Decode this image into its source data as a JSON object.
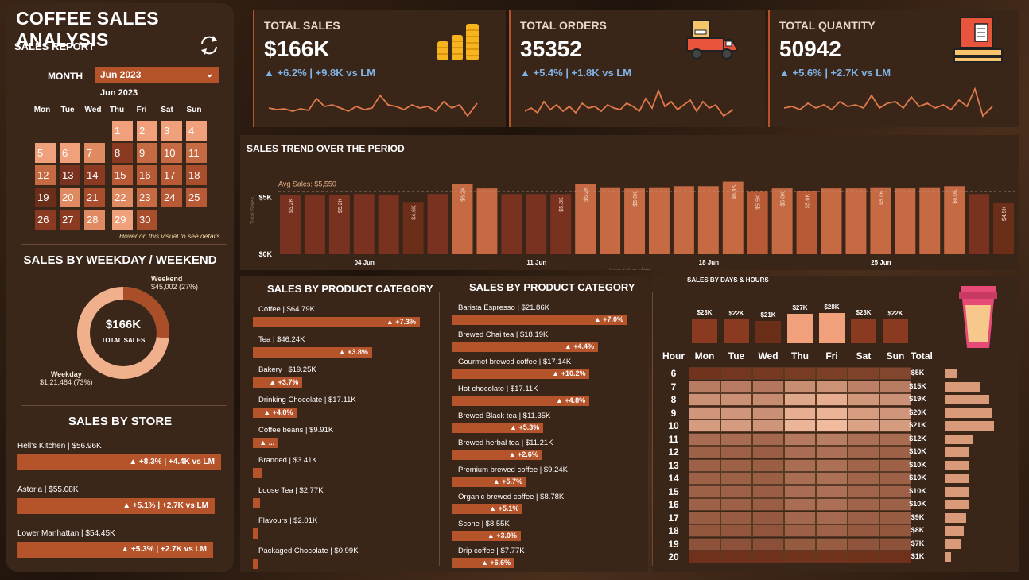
{
  "title": "COFFEE SALES ANALYSIS",
  "sales_report": {
    "label": "SALES REPORT",
    "month_label": "MONTH",
    "month_value": "Jun 2023",
    "calendar_title": "Jun 2023",
    "weekdays": [
      "Mon",
      "Tue",
      "Wed",
      "Thu",
      "Fri",
      "Sat",
      "Sun"
    ],
    "days": [
      "1",
      "2",
      "3",
      "4",
      "5",
      "6",
      "7",
      "8",
      "9",
      "10",
      "11",
      "12",
      "13",
      "14",
      "15",
      "16",
      "17",
      "18",
      "19",
      "20",
      "21",
      "22",
      "23",
      "24",
      "25",
      "26",
      "27",
      "28",
      "29",
      "30"
    ],
    "hint": "Hover on this visual to see details"
  },
  "weekday_weekend": {
    "title": "SALES BY WEEKDAY / WEEKEND",
    "center_value": "$166K",
    "center_label": "TOTAL SALES",
    "weekend_label": "Weekend",
    "weekend_value": "$45,002 (27%)",
    "weekday_label": "Weekday",
    "weekday_value": "$1,21,484 (73%)",
    "weekend_fraction": 0.27
  },
  "stores": {
    "title": "SALES BY STORE",
    "items": [
      {
        "label": "Hell's Kitchen | $56.96K",
        "delta": "▲ +8.3% | +4.4K vs LM"
      },
      {
        "label": "Astoria | $55.08K",
        "delta": "▲ +5.1% | +2.7K vs LM"
      },
      {
        "label": "Lower Manhattan | $54.45K",
        "delta": "▲ +5.3% | +2.7K vs LM"
      }
    ]
  },
  "kpis": [
    {
      "label": "TOTAL SALES",
      "value": "$166K",
      "delta": "▲ +6.2% | +9.8K vs LM",
      "icon": "coins-icon"
    },
    {
      "label": "TOTAL ORDERS",
      "value": "35352",
      "delta": "▲ +5.4% | +1.8K vs LM",
      "icon": "delivery-truck-icon"
    },
    {
      "label": "TOTAL QUANTITY",
      "value": "50942",
      "delta": "▲ +5.6% | +2.7K vs LM",
      "icon": "package-pallet-icon"
    }
  ],
  "trend": {
    "title": "SALES TREND OVER THE PERIOD",
    "avg_label": "Avg Sales: $5,550",
    "y_ticks": [
      "$5K",
      "$0K"
    ],
    "x_ticks": [
      "04 Jun",
      "11 Jun",
      "18 Jun",
      "25 Jun"
    ],
    "y_axis_label": "Total Sales",
    "x_axis_label": "transaction_date"
  },
  "chart_data": [
    {
      "type": "bar",
      "title": "SALES TREND OVER THE PERIOD",
      "xlabel": "transaction_date",
      "ylabel": "Total Sales",
      "x": [
        "1 Jun",
        "2 Jun",
        "3 Jun",
        "4 Jun",
        "5 Jun",
        "6 Jun",
        "7 Jun",
        "8 Jun",
        "9 Jun",
        "10 Jun",
        "11 Jun",
        "12 Jun",
        "13 Jun",
        "14 Jun",
        "15 Jun",
        "16 Jun",
        "17 Jun",
        "18 Jun",
        "19 Jun",
        "20 Jun",
        "21 Jun",
        "22 Jun",
        "23 Jun",
        "24 Jun",
        "25 Jun",
        "26 Jun",
        "27 Jun",
        "28 Jun",
        "29 Jun",
        "30 Jun"
      ],
      "values": [
        5200,
        5250,
        5200,
        5300,
        5250,
        4600,
        5300,
        6200,
        5800,
        5300,
        5300,
        5300,
        6200,
        5900,
        5800,
        5900,
        6000,
        6000,
        6400,
        5500,
        5800,
        5600,
        5800,
        5800,
        5900,
        5800,
        5900,
        6000,
        5300,
        4500
      ],
      "data_labels": [
        "$5.2K",
        "",
        "$5.2K",
        "",
        "",
        "$4.6K",
        "",
        "$6.2K",
        "",
        "",
        "",
        "$5.3K",
        "$6.2K",
        "",
        "$5.8K",
        "",
        "",
        "",
        "$6.4K",
        "$5.5K",
        "$5.8K",
        "$5.6K",
        "",
        "",
        "$5.9K",
        "",
        "",
        "$6.0K",
        "",
        "$4.5K"
      ],
      "average": 5550,
      "ylim": [
        0,
        7000
      ]
    },
    {
      "type": "bar",
      "title": "SALES BY PRODUCT CATEGORY",
      "categories": [
        "Coffee",
        "Tea",
        "Bakery",
        "Drinking Chocolate",
        "Coffee beans",
        "Branded",
        "Loose Tea",
        "Flavours",
        "Packaged Chocolate"
      ],
      "values": [
        64.79,
        46.24,
        19.25,
        17.11,
        9.91,
        3.41,
        2.77,
        2.01,
        0.99
      ]
    },
    {
      "type": "bar",
      "title": "SALES BY PRODUCT CATEGORY",
      "categories": [
        "Barista Espresso",
        "Brewed Chai tea",
        "Gourmet brewed coffee",
        "Hot chocolate",
        "Brewed Black tea",
        "Brewed herbal tea",
        "Premium brewed coffee",
        "Organic brewed coffee",
        "Scone",
        "Drip coffee"
      ],
      "values": [
        21.86,
        18.19,
        17.14,
        17.11,
        11.35,
        11.21,
        9.24,
        8.78,
        8.55,
        7.77
      ]
    },
    {
      "type": "heatmap",
      "title": "SALES BY DAYS & HOURS",
      "x": [
        "Mon",
        "Tue",
        "Wed",
        "Thu",
        "Fri",
        "Sat",
        "Sun"
      ],
      "y": [
        6,
        7,
        8,
        9,
        10,
        11,
        12,
        13,
        14,
        15,
        16,
        17,
        18,
        19,
        20
      ],
      "day_totals": [
        23,
        22,
        21,
        27,
        28,
        23,
        22
      ],
      "hour_totals": [
        5,
        15,
        19,
        20,
        21,
        12,
        10,
        10,
        10,
        10,
        10,
        9,
        8,
        7,
        1
      ]
    }
  ],
  "categories": {
    "title": "SALES BY PRODUCT CATEGORY",
    "items": [
      {
        "label": "Coffee | $64.79K",
        "delta": "▲ +7.3%"
      },
      {
        "label": "Tea | $46.24K",
        "delta": "▲ +3.8%"
      },
      {
        "label": "Bakery | $19.25K",
        "delta": "▲ +3.7%"
      },
      {
        "label": "Drinking Chocolate | $17.11K",
        "delta": "▲ +4.8%"
      },
      {
        "label": "Coffee beans | $9.91K",
        "delta": "▲ ..."
      },
      {
        "label": "Branded | $3.41K",
        "delta": ""
      },
      {
        "label": "Loose Tea | $2.77K",
        "delta": ""
      },
      {
        "label": "Flavours | $2.01K",
        "delta": ""
      },
      {
        "label": "Packaged Chocolate | $0.99K",
        "delta": ""
      }
    ]
  },
  "products": {
    "title": "SALES BY PRODUCT CATEGORY",
    "items": [
      {
        "label": "Barista Espresso | $21.86K",
        "delta": "▲ +7.0%"
      },
      {
        "label": "Brewed Chai tea | $18.19K",
        "delta": "▲ +4.4%"
      },
      {
        "label": "Gourmet brewed coffee | $17.14K",
        "delta": "▲ +10.2%"
      },
      {
        "label": "Hot chocolate | $17.11K",
        "delta": "▲ +4.8%"
      },
      {
        "label": "Brewed Black tea | $11.35K",
        "delta": "▲ +5.3%"
      },
      {
        "label": "Brewed herbal tea | $11.21K",
        "delta": "▲ +2.6%"
      },
      {
        "label": "Premium brewed coffee | $9.24K",
        "delta": "▲ +5.7%"
      },
      {
        "label": "Organic brewed coffee | $8.78K",
        "delta": "▲ +5.1%"
      },
      {
        "label": "Scone | $8.55K",
        "delta": "▲ +3.0%"
      },
      {
        "label": "Drip coffee | $7.77K",
        "delta": "▲ +6.6%"
      }
    ]
  },
  "heatmap": {
    "title": "SALES BY DAYS & HOURS",
    "hour_header": "Hour",
    "total_header": "Total",
    "days": [
      "Mon",
      "Tue",
      "Wed",
      "Thu",
      "Fri",
      "Sat",
      "Sun"
    ],
    "day_totals": [
      "$23K",
      "$22K",
      "$21K",
      "$27K",
      "$28K",
      "$23K",
      "$22K"
    ],
    "hours": [
      "6",
      "7",
      "8",
      "9",
      "10",
      "11",
      "12",
      "13",
      "14",
      "15",
      "16",
      "17",
      "18",
      "19",
      "20"
    ],
    "hour_totals": [
      "$5K",
      "$15K",
      "$19K",
      "$20K",
      "$21K",
      "$12K",
      "$10K",
      "$10K",
      "$10K",
      "$10K",
      "$10K",
      "$9K",
      "$8K",
      "$7K",
      "$1K"
    ]
  },
  "colors": {
    "accent": "#b5532a",
    "panel": "#3a2519",
    "light": "#f0b08c",
    "dark": "#6b2e18",
    "delta_blue": "#7fb3e6"
  }
}
